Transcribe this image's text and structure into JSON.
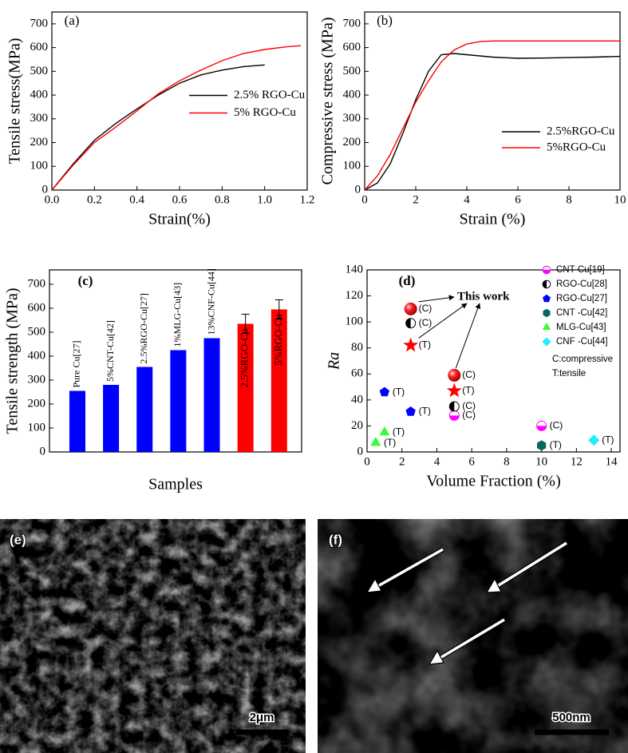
{
  "chart_data": [
    {
      "type": "line",
      "panel_label": "(a)",
      "xlabel": "Strain(%)",
      "ylabel": "Tensile stress(MPa)",
      "x": [
        0,
        0.1,
        0.2,
        0.3,
        0.38,
        0.5,
        0.6,
        0.7,
        0.8,
        0.9,
        1.0,
        1.1,
        1.17
      ],
      "series": [
        {
          "name": "2.5% RGO-Cu",
          "color": "#000000",
          "values": [
            0,
            110,
            210,
            280,
            330,
            400,
            450,
            485,
            505,
            520,
            527,
            null,
            null
          ]
        },
        {
          "name": "5% RGO-Cu",
          "color": "#ff0000",
          "values": [
            0,
            105,
            200,
            265,
            320,
            405,
            460,
            505,
            545,
            575,
            592,
            603,
            608
          ]
        }
      ],
      "xlim": [
        0,
        1.2
      ],
      "xticks": [
        {
          "value": 0,
          "label": "0.0"
        },
        0.2,
        0.4,
        0.6,
        0.8,
        {
          "value": 1,
          "label": "1.0"
        },
        1.2
      ],
      "ylim": [
        0,
        750
      ],
      "yticks": [
        0,
        100,
        200,
        300,
        400,
        500,
        600,
        700
      ],
      "legend": "right"
    },
    {
      "type": "line",
      "panel_label": "(b)",
      "xlabel": "Strain (%)",
      "ylabel": "Compressive stress (MPa)",
      "x": [
        0,
        0.5,
        1,
        1.5,
        2,
        2.5,
        3,
        3.5,
        4,
        4.5,
        5,
        6,
        7,
        8,
        9,
        10
      ],
      "series": [
        {
          "name": "2.5%RGO-Cu",
          "color": "#000000",
          "values": [
            0,
            30,
            110,
            240,
            380,
            500,
            570,
            575,
            570,
            565,
            560,
            555,
            556,
            558,
            560,
            563
          ]
        },
        {
          "name": "5%RGO-Cu",
          "color": "#ff0000",
          "values": [
            0,
            60,
            150,
            260,
            370,
            460,
            540,
            590,
            615,
            625,
            628,
            628,
            628,
            628,
            628,
            628
          ]
        }
      ],
      "xlim": [
        0,
        10
      ],
      "xticks": [
        0,
        2,
        4,
        6,
        8,
        10
      ],
      "ylim": [
        0,
        750
      ],
      "yticks": [
        0,
        100,
        200,
        300,
        400,
        500,
        600,
        700
      ],
      "legend": "lower right"
    },
    {
      "type": "bar",
      "panel_label": "(c)",
      "xlabel": "Samples",
      "ylabel": "Tensile strength (MPa)",
      "categories": [
        "Pure Cu[27]",
        "5%CNT-Cu[42]",
        "2.5%RGO-Cu[27]",
        "1%MLG-Cu[43]",
        "13%CNF-Cu[44]",
        "2.5%RGO-Cu",
        "5%RGO-Cu"
      ],
      "values": [
        255,
        280,
        355,
        425,
        475,
        535,
        595
      ],
      "errors": [
        null,
        null,
        null,
        null,
        null,
        40,
        40
      ],
      "colors": [
        "#0000ff",
        "#0000ff",
        "#0000ff",
        "#0000ff",
        "#0000ff",
        "#ff0000",
        "#ff0000"
      ],
      "ylim": [
        0,
        760
      ],
      "yticks": [
        0,
        100,
        200,
        300,
        400,
        500,
        600,
        700
      ]
    },
    {
      "type": "scatter",
      "panel_label": "(d)",
      "xlabel": "Volume Fraction (%)",
      "ylabel": "Ra",
      "series": [
        {
          "name": "CNT-Cu[19]",
          "color": "#ff00ff",
          "marker": "half-circle-bottom",
          "x": [
            5,
            10
          ],
          "values": [
            28,
            20
          ],
          "point_labels": [
            "(C)",
            "(C)"
          ]
        },
        {
          "name": "RGO-Cu[28]",
          "color": "#000000",
          "marker": "half-circle-left",
          "x": [
            2.5,
            5
          ],
          "values": [
            99,
            35
          ],
          "point_labels": [
            "(C)",
            "(C)"
          ]
        },
        {
          "name": "RGO-Cu[27]",
          "color": "#0000ff",
          "marker": "pentagon",
          "x": [
            1,
            2.5
          ],
          "values": [
            46,
            31
          ],
          "point_labels": [
            "(T)",
            "(T)"
          ]
        },
        {
          "name": "CNT -Cu[42]",
          "color": "#006666",
          "marker": "hexagon",
          "x": [
            10
          ],
          "values": [
            5
          ],
          "point_labels": [
            "(T)"
          ]
        },
        {
          "name": "MLG-Cu[43]",
          "color": "#33ff33",
          "marker": "triangle",
          "x": [
            0.5,
            1
          ],
          "values": [
            7,
            15
          ],
          "point_labels": [
            "(T)",
            "(T)"
          ]
        },
        {
          "name": "CNF -Cu[44]",
          "color": "#22eeff",
          "marker": "diamond",
          "x": [
            13
          ],
          "values": [
            9
          ],
          "point_labels": [
            "(T)"
          ]
        }
      ],
      "highlight": {
        "text": "This work",
        "color": "#ff0000",
        "series": [
          {
            "marker": "sphere",
            "x": [
              2.5,
              5
            ],
            "values": [
              110,
              59
            ],
            "point_labels": [
              "(C)",
              "(C)"
            ]
          },
          {
            "marker": "star",
            "x": [
              2.5,
              5
            ],
            "values": [
              82,
              47
            ],
            "point_labels": [
              "(T)",
              "(T)"
            ]
          }
        ]
      },
      "notes": [
        "C:compressive",
        "T:tensile"
      ],
      "xlim": [
        0,
        14.5
      ],
      "xticks": [
        0,
        2,
        4,
        6,
        8,
        10,
        12,
        14
      ],
      "ylim": [
        0,
        140
      ],
      "yticks": [
        0,
        20,
        40,
        60,
        80,
        100,
        120,
        140
      ],
      "legend": "upper right"
    }
  ],
  "images": [
    {
      "label": "(e)",
      "scale_bar": "2μm"
    },
    {
      "label": "(f)",
      "scale_bar": "500nm"
    }
  ]
}
